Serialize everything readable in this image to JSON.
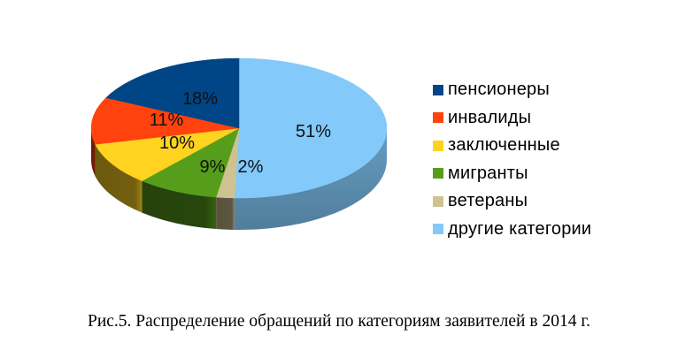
{
  "chart_data": {
    "type": "pie",
    "variant": "3d",
    "title": "",
    "caption": "Рис.5. Распределение обращений по категориям заявителей в 2014 г.",
    "legend_position": "right",
    "start_angle": "12 o'clock, clockwise",
    "slices": [
      {
        "label": "другие категории",
        "value": 51,
        "display": "51%",
        "color": "#83c9fa"
      },
      {
        "label": "ветераны",
        "value": 2,
        "display": "2%",
        "color": "#cfc291"
      },
      {
        "label": "мигранты",
        "value": 9,
        "display": "9%",
        "color": "#579d1c"
      },
      {
        "label": "заключенные",
        "value": 10,
        "display": "10%",
        "color": "#ffd320"
      },
      {
        "label": "инвалиды",
        "value": 11,
        "display": "11%",
        "color": "#ff420e"
      },
      {
        "label": "пенсионеры",
        "value": 18,
        "display": "18%",
        "color": "#004586"
      }
    ],
    "legend": [
      {
        "label": "пенсионеры",
        "color": "#004586"
      },
      {
        "label": "инвалиды",
        "color": "#ff420e"
      },
      {
        "label": "заключенные",
        "color": "#ffd320"
      },
      {
        "label": "мигранты",
        "color": "#579d1c"
      },
      {
        "label": "ветераны",
        "color": "#cfc291"
      },
      {
        "label": "другие категории",
        "color": "#83c9fa"
      }
    ]
  }
}
